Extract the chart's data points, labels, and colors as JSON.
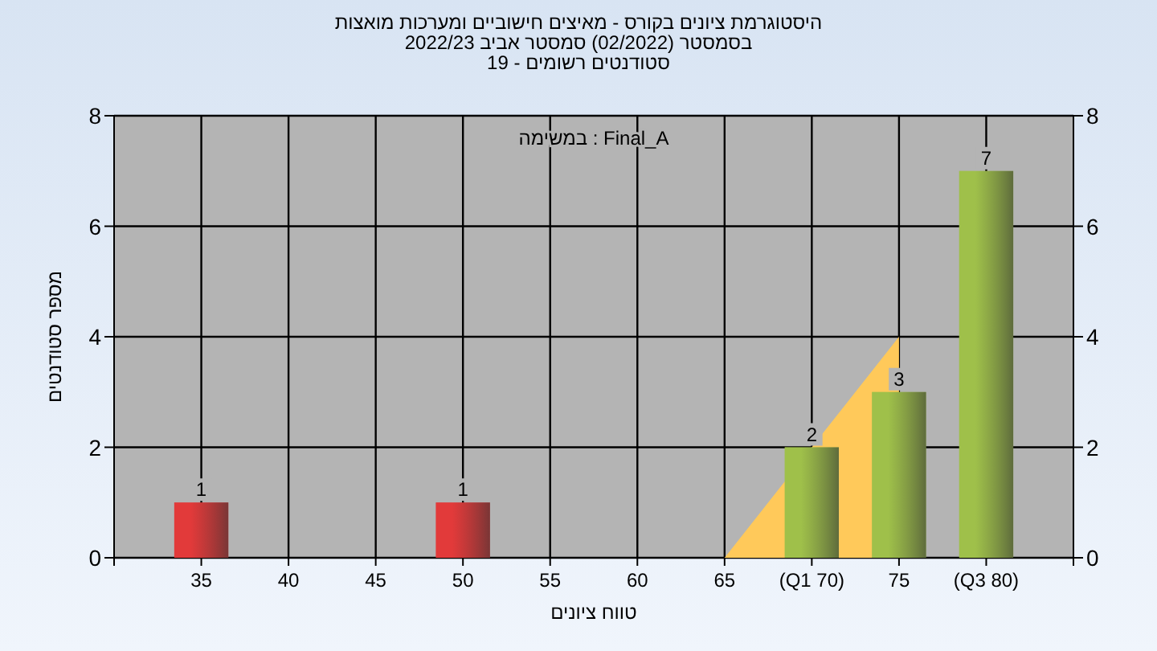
{
  "chart_data": {
    "type": "bar",
    "title": "היסטוגרמת ציונים בקורס - מאיצים חישוביים ומערכות מואצות",
    "subtitle": "בסמסטר  (02/2022)  סמסטר אביב 2022/23\nסטודנטים רשומים - 19",
    "annotations": [
      "במשימה : Final_A"
    ],
    "xlabel": "טווח ציונים",
    "ylabel": "מספר סטודנטים",
    "categories": [
      "35",
      "40",
      "45",
      "50",
      "55",
      "60",
      "65",
      "(Q1 70)",
      "75",
      "(Q3 80)"
    ],
    "series": [
      {
        "type": "area",
        "color": "#ffc95a",
        "values": [
          null,
          null,
          null,
          null,
          null,
          null,
          0,
          2,
          4,
          null
        ]
      },
      {
        "type": "bar",
        "colors": [
          "#e23a3a",
          null,
          null,
          "#e23a3a",
          null,
          null,
          null,
          "#9fc04a",
          "#9fc04a",
          "#9fc04a"
        ],
        "values": [
          1,
          null,
          null,
          1,
          null,
          null,
          null,
          2,
          3,
          7
        ],
        "value_labels": [
          "1",
          null,
          null,
          "1",
          null,
          null,
          null,
          "2",
          "3",
          "7"
        ]
      }
    ],
    "ylim": [
      0,
      8
    ],
    "yticks": [
      0,
      2,
      4,
      6,
      8
    ],
    "y2lim": [
      0,
      8
    ],
    "y2ticks": [
      0,
      2,
      4,
      6,
      8
    ],
    "grid": true
  }
}
